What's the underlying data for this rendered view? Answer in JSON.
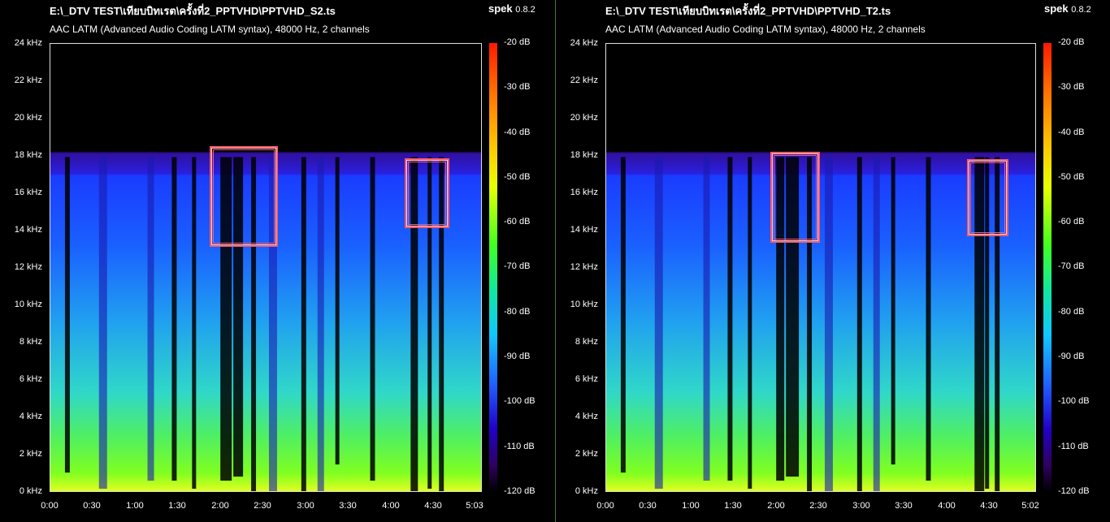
{
  "panels": [
    {
      "file_path": "E:\\_DTV TEST\\เทียบบิทเรต\\ครั้งที่2_PPTVHD\\PPTVHD_S2.ts",
      "app": "spek",
      "version": "0.8.2",
      "meta": "AAC LATM (Advanced Audio Coding LATM syntax), 48000 Hz, 2 channels",
      "x_ticks": [
        "0:00",
        "0:30",
        "1:00",
        "1:30",
        "2:00",
        "2:30",
        "3:00",
        "3:30",
        "4:00",
        "4:30",
        "5:03"
      ]
    },
    {
      "file_path": "E:\\_DTV TEST\\เทียบบิทเรต\\ครั้งที่2_PPTVHD\\PPTVHD_T2.ts",
      "app": "spek",
      "version": "0.8.2",
      "meta": "AAC LATM (Advanced Audio Coding LATM syntax), 48000 Hz, 2 channels",
      "x_ticks": [
        "0:00",
        "0:30",
        "1:00",
        "1:30",
        "2:00",
        "2:30",
        "3:00",
        "3:30",
        "4:00",
        "4:30",
        "5:02"
      ]
    }
  ],
  "y_ticks": [
    "24 kHz",
    "22 kHz",
    "20 kHz",
    "18 kHz",
    "16 kHz",
    "14 kHz",
    "12 kHz",
    "10 kHz",
    "8 kHz",
    "6 kHz",
    "4 kHz",
    "2 kHz",
    "0 kHz"
  ],
  "db_ticks": [
    "-20 dB",
    "-30 dB",
    "-40 dB",
    "-50 dB",
    "-60 dB",
    "-70 dB",
    "-80 dB",
    "-90 dB",
    "-100 dB",
    "-110 dB",
    "-120 dB"
  ],
  "colors": {
    "highlight": "#ff5a6a",
    "divider": "#4a7a3a"
  }
}
